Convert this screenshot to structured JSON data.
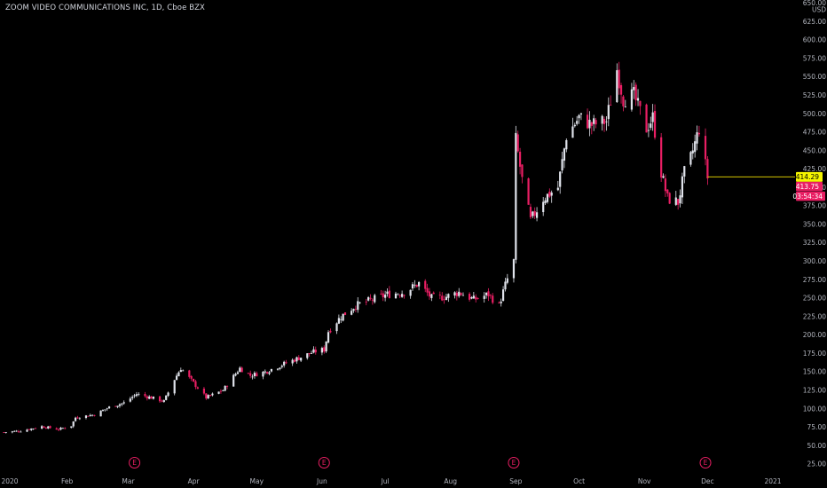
{
  "header": {
    "title": "ZOOM VIDEO COMMUNICATIONS INC, 1D, Cboe BZX"
  },
  "colors": {
    "up": "#e0e3eb",
    "down": "#e91e63",
    "bg": "#000000",
    "text": "#b2b5be",
    "price_line": "#d4c400",
    "price_tag": "#f5f500",
    "red_tag": "#e91e63",
    "earnings": "#e91e63"
  },
  "labels": {
    "currency": "USD",
    "last_price": "414.29",
    "second_price": "413.75",
    "countdown": "03:54:34",
    "earnings_marker": "E"
  },
  "chart_data": {
    "type": "candlestick",
    "title": "ZOOM VIDEO COMMUNICATIONS INC, 1D, Cboe BZX",
    "ylim": [
      25,
      650
    ],
    "y_ticks": [
      "25.00",
      "50.00",
      "75.00",
      "100.00",
      "125.00",
      "150.00",
      "175.00",
      "200.00",
      "225.00",
      "250.00",
      "275.00",
      "300.00",
      "325.00",
      "350.00",
      "375.00",
      "400.00",
      "425.00",
      "450.00",
      "475.00",
      "500.00",
      "525.00",
      "550.00",
      "575.00",
      "600.00",
      "625.00",
      "650.00"
    ],
    "x_ticks": [
      "2020",
      "Feb",
      "Mar",
      "Apr",
      "May",
      "Jun",
      "Jul",
      "Aug",
      "Sep",
      "Oct",
      "Nov",
      "Dec",
      "2021"
    ],
    "last_price": 414.29,
    "earnings_events": [
      "Mar",
      "Jun",
      "Sep",
      "Dec"
    ],
    "anchors": [
      [
        "2020-01-02",
        68
      ],
      [
        "2020-01-10",
        70
      ],
      [
        "2020-01-20",
        76
      ],
      [
        "2020-01-28",
        72
      ],
      [
        "2020-02-03",
        77
      ],
      [
        "2020-02-05",
        88
      ],
      [
        "2020-02-14",
        92
      ],
      [
        "2020-02-21",
        102
      ],
      [
        "2020-02-28",
        108
      ],
      [
        "2020-03-05",
        120
      ],
      [
        "2020-03-12",
        115
      ],
      [
        "2020-03-18",
        110
      ],
      [
        "2020-03-23",
        140
      ],
      [
        "2020-03-26",
        155
      ],
      [
        "2020-04-01",
        135
      ],
      [
        "2020-04-07",
        115
      ],
      [
        "2020-04-15",
        125
      ],
      [
        "2020-04-23",
        155
      ],
      [
        "2020-04-28",
        145
      ],
      [
        "2020-05-05",
        150
      ],
      [
        "2020-05-15",
        162
      ],
      [
        "2020-05-22",
        170
      ],
      [
        "2020-05-29",
        178
      ],
      [
        "2020-06-02",
        180
      ],
      [
        "2020-06-04",
        205
      ],
      [
        "2020-06-10",
        225
      ],
      [
        "2020-06-17",
        240
      ],
      [
        "2020-06-25",
        248
      ],
      [
        "2020-07-02",
        255
      ],
      [
        "2020-07-10",
        258
      ],
      [
        "2020-07-17",
        270
      ],
      [
        "2020-07-23",
        250
      ],
      [
        "2020-07-30",
        252
      ],
      [
        "2020-08-05",
        258
      ],
      [
        "2020-08-12",
        248
      ],
      [
        "2020-08-19",
        255
      ],
      [
        "2020-08-24",
        240
      ],
      [
        "2020-08-27",
        268
      ],
      [
        "2020-08-31",
        300
      ],
      [
        "2020-09-01",
        465
      ],
      [
        "2020-09-04",
        410
      ],
      [
        "2020-09-08",
        355
      ],
      [
        "2020-09-14",
        385
      ],
      [
        "2020-09-21",
        400
      ],
      [
        "2020-09-25",
        470
      ],
      [
        "2020-10-01",
        495
      ],
      [
        "2020-10-07",
        485
      ],
      [
        "2020-10-14",
        490
      ],
      [
        "2020-10-19",
        560
      ],
      [
        "2020-10-22",
        520
      ],
      [
        "2020-10-27",
        525
      ],
      [
        "2020-11-02",
        480
      ],
      [
        "2020-11-05",
        495
      ],
      [
        "2020-11-09",
        420
      ],
      [
        "2020-11-12",
        385
      ],
      [
        "2020-11-17",
        380
      ],
      [
        "2020-11-20",
        420
      ],
      [
        "2020-11-23",
        440
      ],
      [
        "2020-11-27",
        480
      ],
      [
        "2020-12-01",
        414
      ]
    ]
  }
}
